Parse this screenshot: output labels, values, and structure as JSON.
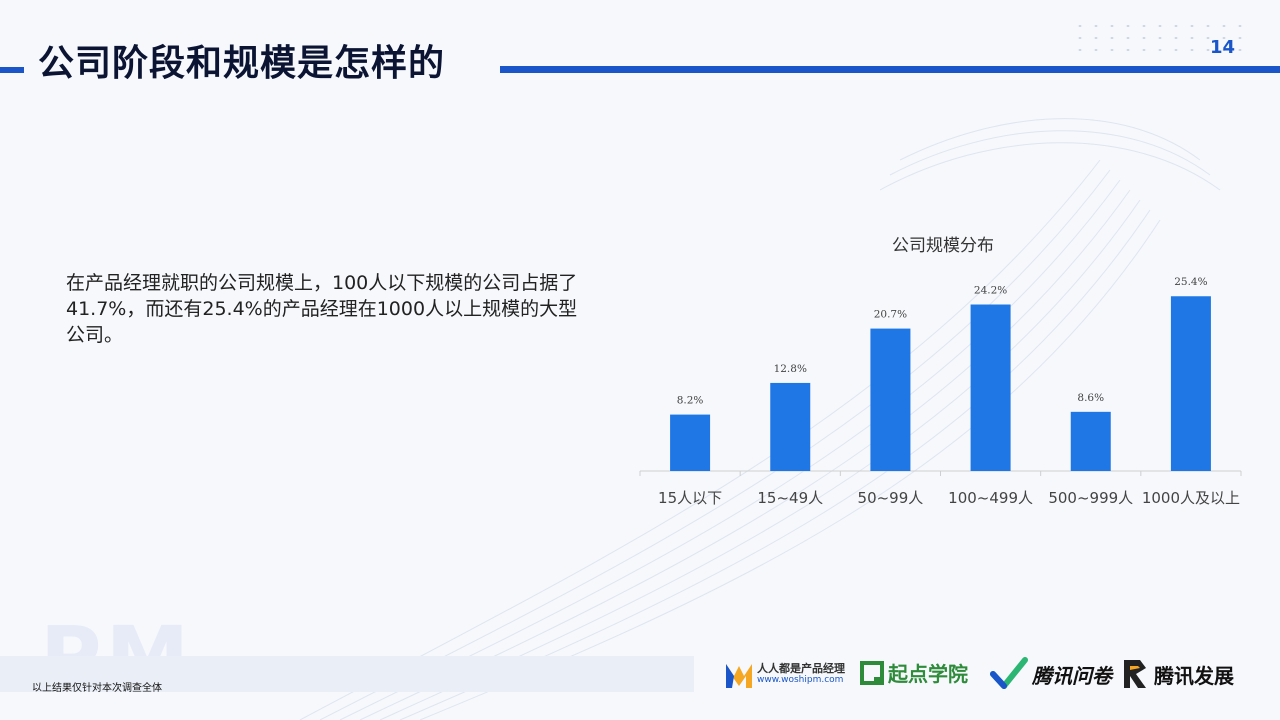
{
  "header": {
    "title": "公司阶段和规模是怎样的",
    "page_number": "14"
  },
  "body": {
    "text": "在产品经理就职的公司规模上，100人以下规模的公司占据了41.7%，而还有25.4%的产品经理在1000人以上规模的大型公司。"
  },
  "chart_data": {
    "type": "bar",
    "title": "公司规模分布",
    "categories": [
      "15人以下",
      "15~49人",
      "50~99人",
      "100~499人",
      "500~999人",
      "1000人及以上"
    ],
    "values": [
      8.2,
      12.8,
      20.7,
      24.2,
      8.6,
      25.4
    ],
    "data_labels": [
      "8.2%",
      "12.8%",
      "20.7%",
      "24.2%",
      "8.6%",
      "25.4%"
    ],
    "unit": "%",
    "color": "#1f77e5",
    "grid": false,
    "legend": false
  },
  "footer": {
    "note": "以上结果仅针对本次调查全体",
    "watermark": "PM",
    "logos": {
      "rrdp_main": "人人都是产品经理",
      "rrdp_sub": "www.woshipm.com",
      "qidian_main": "起点学院",
      "wenjuan_main": "腾讯问卷",
      "fazhan_main": "腾讯发展"
    }
  }
}
